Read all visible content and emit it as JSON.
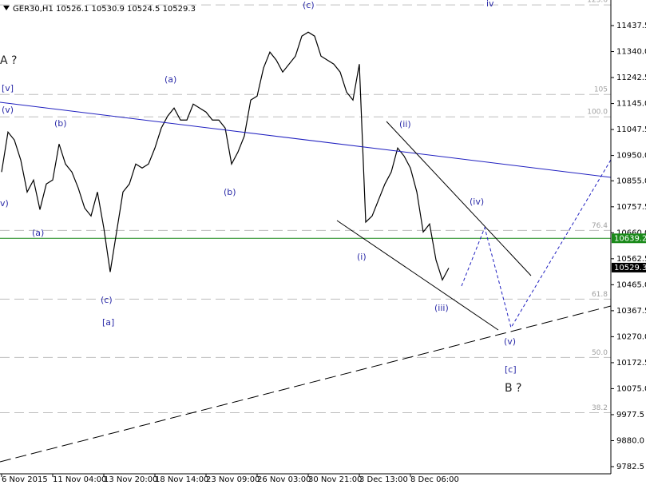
{
  "chart_data": {
    "type": "line",
    "header": "GER30,H1  10526.1 10530.9 10524.5 10529.3",
    "categories": [
      "6 Nov 2015",
      null,
      null,
      null,
      null,
      null,
      null,
      null,
      "11 Nov 04:00",
      null,
      null,
      null,
      null,
      null,
      null,
      null,
      "13 Nov 20:00",
      null,
      null,
      null,
      null,
      null,
      null,
      null,
      "18 Nov 14:00",
      null,
      null,
      null,
      null,
      null,
      null,
      null,
      "23 Nov 09:00",
      null,
      null,
      null,
      null,
      null,
      null,
      null,
      "26 Nov 03:00",
      null,
      null,
      null,
      null,
      null,
      null,
      null,
      "30 Nov 21:00",
      null,
      null,
      null,
      null,
      null,
      null,
      null,
      "3 Dec 13:00",
      null,
      null,
      null,
      null,
      null,
      null,
      null,
      "8 Dec 06:00",
      null,
      null,
      null,
      null,
      null,
      null
    ],
    "series": [
      {
        "name": "GER30",
        "color": "#000000",
        "values": [
          10888,
          11038,
          11008,
          10933,
          10813,
          10858,
          10747,
          10843,
          10858,
          10993,
          10918,
          10888,
          10828,
          10753,
          10723,
          10813,
          10678,
          10513,
          10663,
          10813,
          10843,
          10918,
          10903,
          10918,
          10978,
          11053,
          11098,
          11128,
          11083,
          11083,
          11143,
          11128,
          11113,
          11083,
          11083,
          11053,
          10918,
          10963,
          11023,
          11158,
          11173,
          11278,
          11338,
          11308,
          11263,
          11293,
          11323,
          11398,
          11413,
          11398,
          11323,
          11308,
          11293,
          11263,
          11188,
          11158,
          11293,
          10700,
          10723,
          10783,
          10843,
          10888,
          10978,
          10948,
          10903,
          10813,
          10663,
          10693,
          10558,
          10483,
          10528
        ]
      }
    ],
    "ylim": [
      9755.5,
      11533.5
    ],
    "yticks": [
      {
        "value": 11437.5,
        "label": "11437.5"
      },
      {
        "value": 11340,
        "label": "11340.0"
      },
      {
        "value": 11242.5,
        "label": "11242.5"
      },
      {
        "value": 11145,
        "label": "11145.0"
      },
      {
        "value": 11047.5,
        "label": "11047.5"
      },
      {
        "value": 10950,
        "label": "10950.0"
      },
      {
        "value": 10855,
        "label": "10855.0"
      },
      {
        "value": 10757.5,
        "label": "10757.5"
      },
      {
        "value": 10660,
        "label": "10660.0"
      },
      {
        "value": 10562.5,
        "label": "10562.5"
      },
      {
        "value": 10465,
        "label": "10465.0"
      },
      {
        "value": 10367.5,
        "label": "10367.5"
      },
      {
        "value": 10270,
        "label": "10270.0"
      },
      {
        "value": 10172.5,
        "label": "10172.5"
      },
      {
        "value": 10075,
        "label": "10075.0"
      },
      {
        "value": 9977.5,
        "label": "9977.5"
      },
      {
        "value": 9880,
        "label": "9880.0"
      },
      {
        "value": 9782.5,
        "label": "9782.5"
      }
    ],
    "levels": [
      {
        "label": "123.6",
        "value": 11515
      },
      {
        "label": "105",
        "value": 11179
      },
      {
        "label": "100.0",
        "value": 11095
      },
      {
        "label": "76.4",
        "value": 10669
      },
      {
        "label": "61.8",
        "value": 10411
      },
      {
        "label": "50.0",
        "value": 10192
      },
      {
        "label": "38.2",
        "value": 9985
      }
    ],
    "marker_line": {
      "value": 10639.2,
      "color": "#1a8a1a"
    },
    "current_price": 10529.3,
    "annotations": [
      "(c)",
      "A ?",
      "[v]",
      "(v)",
      "(b)",
      "(a)",
      "(b)",
      "v)",
      "(a)",
      "(c)",
      "[a]",
      "(ii)",
      "(iv)",
      "(i)",
      "(iii)",
      "(v)",
      "[c]",
      "B ?",
      "''",
      "iv"
    ]
  }
}
